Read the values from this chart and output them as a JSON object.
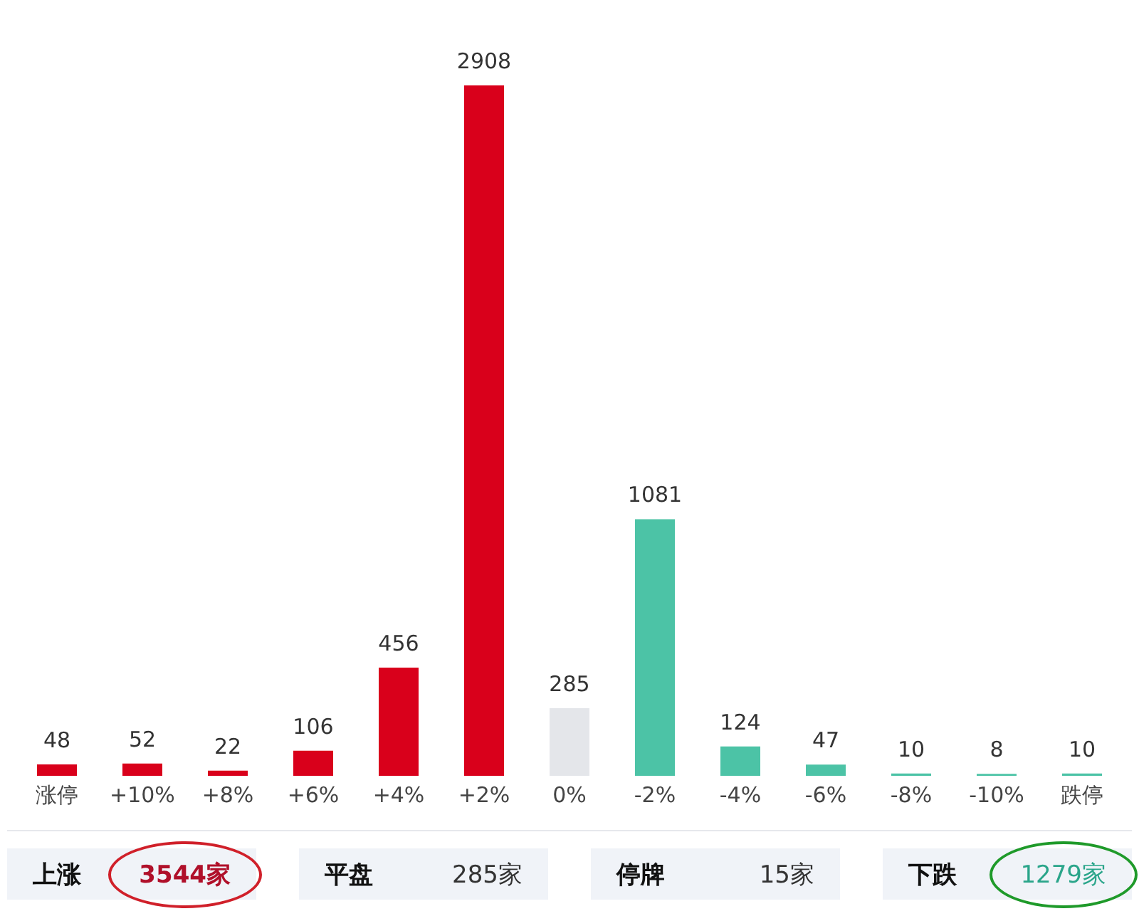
{
  "chart_data": {
    "type": "bar",
    "categories": [
      "涨停",
      "+10%",
      "+8%",
      "+6%",
      "+4%",
      "+2%",
      "0%",
      "-2%",
      "-4%",
      "-6%",
      "-8%",
      "-10%",
      "跌停"
    ],
    "values": [
      48,
      52,
      22,
      106,
      456,
      2908,
      285,
      1081,
      124,
      47,
      10,
      8,
      10
    ],
    "colors": [
      "#d9001b",
      "#d9001b",
      "#d9001b",
      "#d9001b",
      "#d9001b",
      "#d9001b",
      "#e4e6ea",
      "#4cc3a6",
      "#4cc3a6",
      "#4cc3a6",
      "#4cc3a6",
      "#4cc3a6",
      "#4cc3a6"
    ],
    "data_labels": true,
    "annotations": [
      "上涨",
      "3544家",
      "平盘",
      "285家",
      "停牌",
      "15家",
      "下跌",
      "1279家"
    ]
  }
}
